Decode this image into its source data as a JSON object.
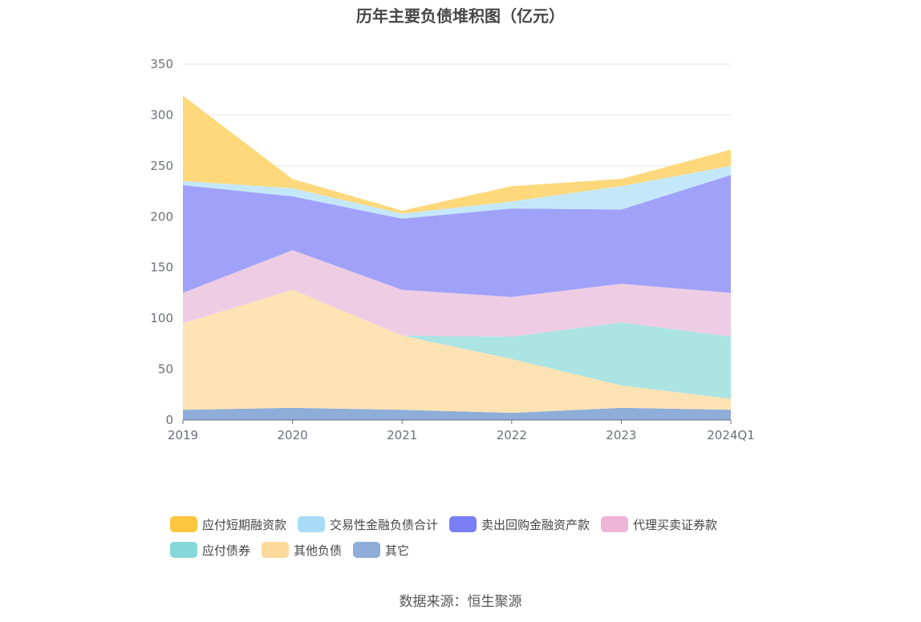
{
  "chart_data": {
    "type": "area",
    "title": "历年主要负债堆积图（亿元）",
    "x": [
      "2019",
      "2020",
      "2021",
      "2022",
      "2023",
      "2024Q1"
    ],
    "ylim": [
      0,
      350
    ],
    "yticks": [
      0,
      50,
      100,
      150,
      200,
      250,
      300,
      350
    ],
    "grid": true,
    "stacked": true,
    "legend_position": "bottom",
    "series": [
      {
        "name": "其它",
        "color": "#8eadd9",
        "legend_color": "#8eadd9",
        "values": [
          10,
          12,
          10,
          7,
          12,
          10
        ]
      },
      {
        "name": "其他负债",
        "color": "#fde3b3",
        "legend_color": "#fdd89b",
        "values": [
          85,
          116,
          73,
          53,
          22,
          11
        ]
      },
      {
        "name": "应付债券",
        "color": "#ace3e3",
        "legend_color": "#85d8d8",
        "values": [
          0,
          0,
          0,
          22,
          62,
          61
        ]
      },
      {
        "name": "代理买卖证券款",
        "color": "#eecde4",
        "legend_color": "#eeb5d7",
        "values": [
          30,
          39,
          45,
          39,
          38,
          43
        ]
      },
      {
        "name": "卖出回购金融资产款",
        "color": "#a0a2f9",
        "legend_color": "#7b7ff4",
        "values": [
          106,
          53,
          70,
          87,
          73,
          116
        ]
      },
      {
        "name": "交易性金融负债合计",
        "color": "#c4e8fa",
        "legend_color": "#a7dcf7",
        "values": [
          4,
          8,
          5,
          7,
          23,
          9
        ]
      },
      {
        "name": "应付短期融资款",
        "color": "#fed87b",
        "legend_color": "#fdc63f",
        "values": [
          84,
          9,
          3,
          15,
          7,
          16
        ]
      }
    ]
  },
  "legend_rows": [
    [
      "应付短期融资款",
      "交易性金融负债合计",
      "卖出回购金融资产款",
      "代理买卖证券款"
    ],
    [
      "应付债券",
      "其他负债",
      "其它"
    ]
  ],
  "source": "数据来源：恒生聚源"
}
